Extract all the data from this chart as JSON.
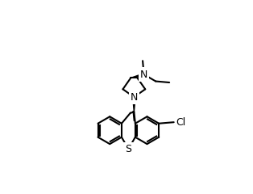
{
  "bg_color": "#ffffff",
  "lc": "#000000",
  "lw": 1.5,
  "figsize": [
    3.14,
    2.4
  ],
  "dpi": 100,
  "S_label": "S",
  "N_label": "N",
  "Cl_label": "Cl"
}
